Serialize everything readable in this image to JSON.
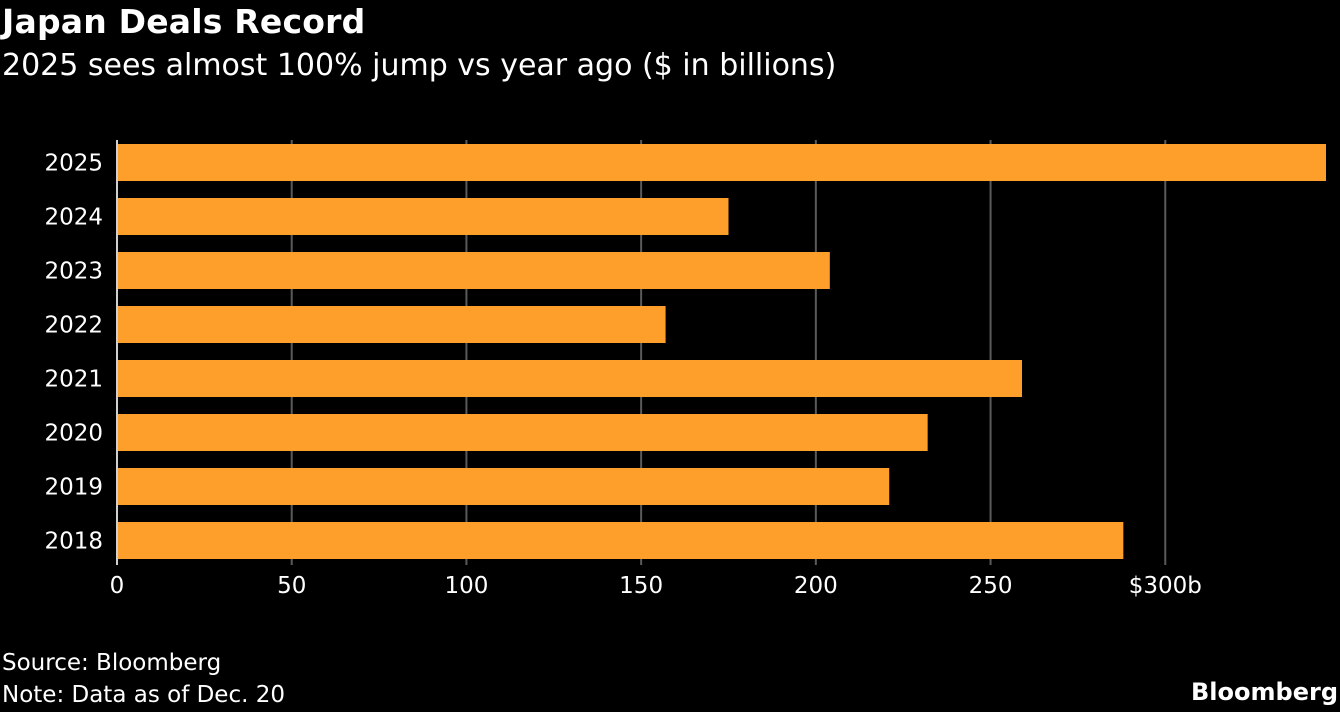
{
  "chart_data": {
    "type": "bar",
    "orientation": "horizontal",
    "title": "Japan Deals Record",
    "subtitle": "2025 sees almost 100% jump vs year ago ($ in billions)",
    "categories": [
      "2025",
      "2024",
      "2023",
      "2022",
      "2021",
      "2020",
      "2019",
      "2018"
    ],
    "values": [
      346,
      175,
      204,
      157,
      259,
      232,
      221,
      288
    ],
    "xlim": [
      0,
      346
    ],
    "xticks": [
      0,
      50,
      100,
      150,
      200,
      250,
      300
    ],
    "xtick_labels": [
      "0",
      "50",
      "100",
      "150",
      "200",
      "250",
      "$300b"
    ],
    "xlabel": "",
    "ylabel": "",
    "grid": true,
    "bar_color": "#ff9f2b",
    "grid_color": "#5a5a5a",
    "axis_color": "#d0d0d0",
    "text_color": "#ffffff",
    "background": "#000000"
  },
  "footer": {
    "source": "Source: Bloomberg",
    "note": "Note: Data as of Dec. 20",
    "brand": "Bloomberg"
  }
}
